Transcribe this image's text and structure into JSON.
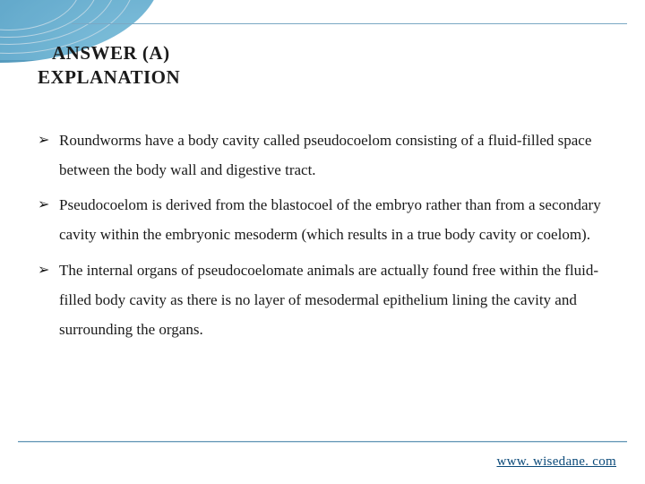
{
  "header": {
    "answer_label": "ANSWER (A)",
    "explanation_label": "EXPLANATION"
  },
  "bullets": [
    "Roundworms have a body cavity called pseudocoelom consisting of a fluid-filled space between the body wall and digestive tract.",
    "Pseudocoelom is derived from the blastocoel of the embryo rather than from a secondary cavity within the embryonic mesoderm (which results in a true body cavity or coelom).",
    "The internal organs of pseudocoelomate animals are actually found free within the fluid-filled body cavity as there is no layer of mesodermal epithelium lining the cavity and surrounding the organs."
  ],
  "footer": {
    "link_text": "www. wisedane. com"
  },
  "style": {
    "bullet_glyph": "➢",
    "text_color": "#1a1a1a",
    "link_color": "#0b4a7a",
    "background": "#ffffff",
    "accent_gradient_from": "#6fb9d8",
    "accent_gradient_to": "#2e7fa8"
  }
}
